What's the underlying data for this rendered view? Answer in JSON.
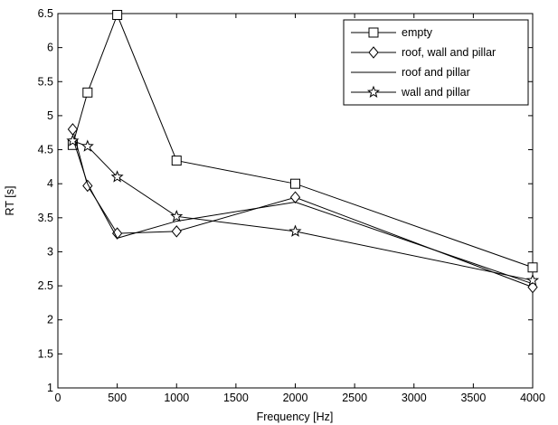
{
  "chart_data": {
    "type": "line",
    "title": "",
    "xlabel": "Frequency [Hz]",
    "ylabel": "RT [s]",
    "xlim": [
      0,
      4000
    ],
    "ylim": [
      1,
      6.5
    ],
    "xticks": [
      0,
      500,
      1000,
      1500,
      2000,
      2500,
      3000,
      3500,
      4000
    ],
    "yticks": [
      1,
      1.5,
      2,
      2.5,
      3,
      3.5,
      4,
      4.5,
      5,
      5.5,
      6,
      6.5
    ],
    "grid": false,
    "legend_position": "top-right",
    "series": [
      {
        "name": "empty",
        "marker": "square",
        "color": "#000000",
        "x": [
          125,
          250,
          500,
          1000,
          2000,
          4000
        ],
        "y": [
          4.57,
          5.34,
          6.48,
          4.34,
          4.0,
          2.77
        ]
      },
      {
        "name": "roof, wall and pillar",
        "marker": "diamond",
        "color": "#000000",
        "x": [
          125,
          250,
          500,
          1000,
          2000,
          4000
        ],
        "y": [
          4.8,
          3.97,
          3.27,
          3.3,
          3.8,
          2.48
        ]
      },
      {
        "name": "roof and pillar",
        "marker": "none",
        "color": "#000000",
        "x": [
          125,
          250,
          500,
          1000,
          2000,
          4000
        ],
        "y": [
          4.67,
          4.0,
          3.2,
          3.45,
          3.73,
          2.53
        ]
      },
      {
        "name": "wall and pillar",
        "marker": "star",
        "color": "#000000",
        "x": [
          125,
          250,
          500,
          1000,
          2000,
          4000
        ],
        "y": [
          4.63,
          4.55,
          4.1,
          3.52,
          3.3,
          2.58
        ]
      }
    ]
  }
}
